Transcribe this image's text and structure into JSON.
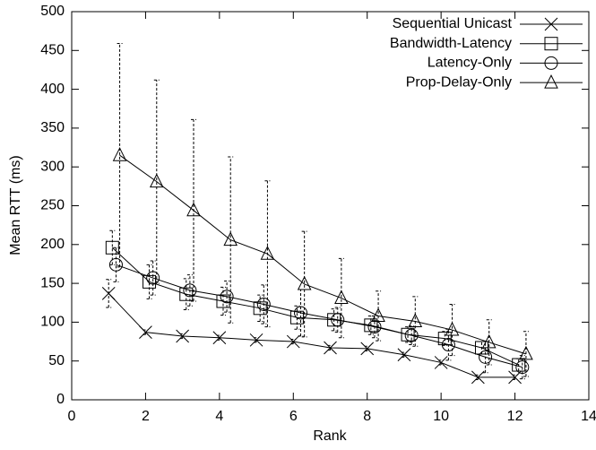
{
  "chart_data": {
    "type": "errorbar-line",
    "xlabel": "Rank",
    "ylabel": "Mean RTT (ms)",
    "xlim": [
      0,
      14
    ],
    "xticks": [
      0,
      2,
      4,
      6,
      8,
      10,
      12,
      14
    ],
    "ylim": [
      0,
      500
    ],
    "yticks": [
      0,
      50,
      100,
      150,
      200,
      250,
      300,
      350,
      400,
      450,
      500
    ],
    "grid": false,
    "legend": "top-right",
    "series": [
      {
        "name": "Sequential Unicast",
        "color": "#000000",
        "marker": "x",
        "x": [
          1,
          2,
          3,
          4,
          5,
          6,
          7,
          8,
          9,
          10,
          11,
          12
        ],
        "values": [
          137,
          87,
          82,
          80,
          77,
          75,
          67,
          66,
          58,
          48,
          29,
          29
        ],
        "errors": [
          18,
          3,
          3,
          3,
          3,
          3,
          3,
          3,
          3,
          3,
          3,
          3
        ]
      },
      {
        "name": "Bandwidth-Latency",
        "color": "#000000",
        "marker": "square",
        "x": [
          1.1,
          2.1,
          3.1,
          4.1,
          5.1,
          6.1,
          7.1,
          8.1,
          9.1,
          10.1,
          11.1,
          12.1
        ],
        "values": [
          196,
          152,
          136,
          127,
          118,
          106,
          103,
          96,
          84,
          79,
          67,
          45
        ],
        "errors": [
          22,
          22,
          20,
          18,
          17,
          15,
          14,
          12,
          10,
          9,
          8,
          8
        ]
      },
      {
        "name": "Latency-Only",
        "color": "#000000",
        "marker": "circle",
        "x": [
          1.2,
          2.2,
          3.2,
          4.2,
          5.2,
          6.2,
          7.2,
          8.2,
          9.2,
          10.2,
          11.2,
          12.2
        ],
        "values": [
          174,
          157,
          141,
          133,
          123,
          112,
          103,
          94,
          83,
          71,
          55,
          42
        ],
        "errors": [
          22,
          22,
          20,
          20,
          25,
          30,
          16,
          14,
          12,
          20,
          20,
          15
        ]
      },
      {
        "name": "Prop-Delay-Only",
        "color": "#000000",
        "marker": "triangle",
        "x": [
          1.3,
          2.3,
          3.3,
          4.3,
          5.3,
          6.3,
          7.3,
          8.3,
          9.3,
          10.3,
          11.3,
          12.3
        ],
        "values": [
          315,
          281,
          244,
          206,
          188,
          149,
          131,
          108,
          101,
          90,
          74,
          59
        ],
        "errors": [
          144,
          131,
          117,
          107,
          94,
          68,
          51,
          32,
          32,
          33,
          29,
          29
        ]
      }
    ]
  }
}
